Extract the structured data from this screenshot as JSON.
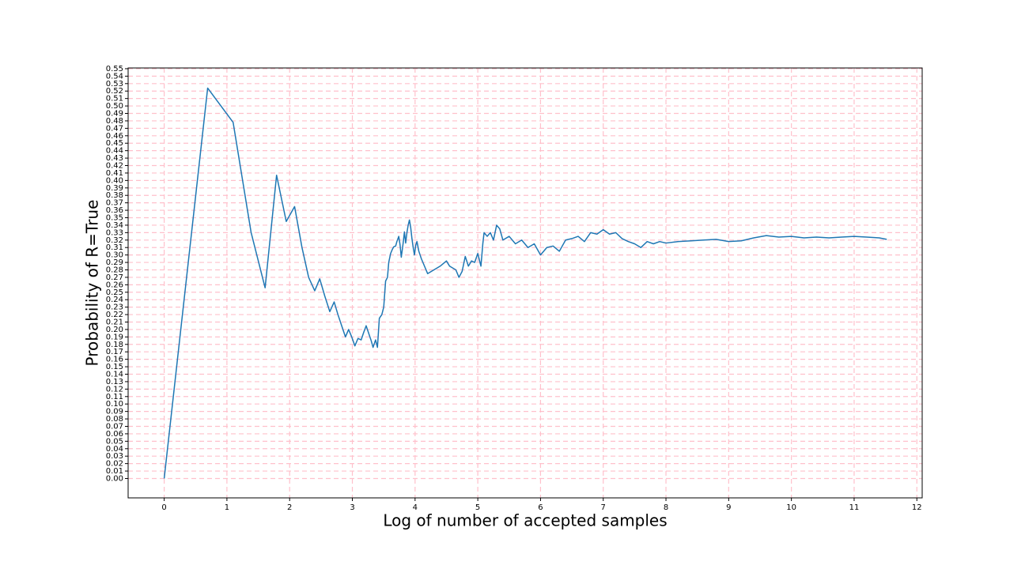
{
  "chart_data": {
    "type": "line",
    "xlabel": "Log of number of accepted samples",
    "ylabel": "Probability of R=True",
    "color": "#1f77b4",
    "grid": true,
    "grid_color": "#ffc0cb",
    "xlim": [
      -0.575,
      12.085
    ],
    "ylim": [
      -0.026,
      0.551
    ],
    "xticks": [
      0,
      1,
      2,
      3,
      4,
      5,
      6,
      7,
      8,
      9,
      10,
      11,
      12
    ],
    "yticks": [
      {
        "value": 0,
        "label": "0.00"
      },
      {
        "value": 0.01,
        "label": "0.01"
      },
      {
        "value": 0.02,
        "label": "0.02"
      },
      {
        "value": 0.03,
        "label": "0.03"
      },
      {
        "value": 0.04,
        "label": "0.04"
      },
      {
        "value": 0.05,
        "label": "0.05"
      },
      {
        "value": 0.06,
        "label": "0.06"
      },
      {
        "value": 0.07,
        "label": "0.07"
      },
      {
        "value": 0.08,
        "label": "0.08"
      },
      {
        "value": 0.09,
        "label": "0.09"
      },
      {
        "value": 0.1,
        "label": "0.10"
      },
      {
        "value": 0.11,
        "label": "0.11"
      },
      {
        "value": 0.12,
        "label": "0.12"
      },
      {
        "value": 0.13,
        "label": "0.13"
      },
      {
        "value": 0.14,
        "label": "0.14"
      },
      {
        "value": 0.15,
        "label": "0.15"
      },
      {
        "value": 0.16,
        "label": "0.16"
      },
      {
        "value": 0.17,
        "label": "0.17"
      },
      {
        "value": 0.18,
        "label": "0.18"
      },
      {
        "value": 0.19,
        "label": "0.19"
      },
      {
        "value": 0.2,
        "label": "0.20"
      },
      {
        "value": 0.21,
        "label": "0.21"
      },
      {
        "value": 0.22,
        "label": "0.22"
      },
      {
        "value": 0.23,
        "label": "0.23"
      },
      {
        "value": 0.24,
        "label": "0.24"
      },
      {
        "value": 0.25,
        "label": "0.25"
      },
      {
        "value": 0.26,
        "label": "0.26"
      },
      {
        "value": 0.27,
        "label": "0.27"
      },
      {
        "value": 0.28,
        "label": "0.28"
      },
      {
        "value": 0.29,
        "label": "0.29"
      },
      {
        "value": 0.3,
        "label": "0.30"
      },
      {
        "value": 0.31,
        "label": "0.31"
      },
      {
        "value": 0.32,
        "label": "0.32"
      },
      {
        "value": 0.33,
        "label": "0.33"
      },
      {
        "value": 0.34,
        "label": "0.34"
      },
      {
        "value": 0.35,
        "label": "0.35"
      },
      {
        "value": 0.36,
        "label": "0.36"
      },
      {
        "value": 0.37,
        "label": "0.37"
      },
      {
        "value": 0.38,
        "label": "0.38"
      },
      {
        "value": 0.39,
        "label": "0.39"
      },
      {
        "value": 0.4,
        "label": "0.40"
      },
      {
        "value": 0.41,
        "label": "0.41"
      },
      {
        "value": 0.42,
        "label": "0.42"
      },
      {
        "value": 0.43,
        "label": "0.43"
      },
      {
        "value": 0.44,
        "label": "0.44"
      },
      {
        "value": 0.45,
        "label": "0.45"
      },
      {
        "value": 0.46,
        "label": "0.46"
      },
      {
        "value": 0.47,
        "label": "0.47"
      },
      {
        "value": 0.48,
        "label": "0.48"
      },
      {
        "value": 0.49,
        "label": "0.49"
      },
      {
        "value": 0.5,
        "label": "0.50"
      },
      {
        "value": 0.51,
        "label": "0.51"
      },
      {
        "value": 0.52,
        "label": "0.52"
      },
      {
        "value": 0.53,
        "label": "0.53"
      },
      {
        "value": 0.54,
        "label": "0.54"
      },
      {
        "value": 0.55,
        "label": "0.55"
      }
    ],
    "x": [
      0,
      0.693,
      1.099,
      1.386,
      1.609,
      1.792,
      1.946,
      2.079,
      2.197,
      2.303,
      2.4,
      2.48,
      2.56,
      2.64,
      2.71,
      2.77,
      2.83,
      2.89,
      2.94,
      2.99,
      3.04,
      3.09,
      3.14,
      3.18,
      3.22,
      3.26,
      3.3,
      3.33,
      3.37,
      3.4,
      3.43,
      3.47,
      3.5,
      3.53,
      3.56,
      3.58,
      3.61,
      3.64,
      3.66,
      3.69,
      3.71,
      3.74,
      3.76,
      3.78,
      3.81,
      3.83,
      3.85,
      3.87,
      3.89,
      3.91,
      3.93,
      3.95,
      3.97,
      3.99,
      4.01,
      4.03,
      4.06,
      4.1,
      4.2,
      4.3,
      4.4,
      4.5,
      4.55,
      4.65,
      4.7,
      4.75,
      4.8,
      4.85,
      4.9,
      4.95,
      5.0,
      5.05,
      5.08,
      5.1,
      5.15,
      5.2,
      5.25,
      5.3,
      5.35,
      5.4,
      5.5,
      5.6,
      5.7,
      5.8,
      5.9,
      6.0,
      6.1,
      6.2,
      6.3,
      6.4,
      6.5,
      6.6,
      6.7,
      6.8,
      6.9,
      7.0,
      7.1,
      7.2,
      7.3,
      7.4,
      7.5,
      7.6,
      7.7,
      7.8,
      7.9,
      8.0,
      8.2,
      8.4,
      8.6,
      8.8,
      9.0,
      9.2,
      9.4,
      9.6,
      9.8,
      10.0,
      10.2,
      10.4,
      10.6,
      10.8,
      11.0,
      11.2,
      11.4,
      11.52
    ],
    "values": [
      0,
      0.524,
      0.478,
      0.33,
      0.256,
      0.407,
      0.345,
      0.365,
      0.31,
      0.27,
      0.252,
      0.268,
      0.245,
      0.224,
      0.237,
      0.22,
      0.205,
      0.19,
      0.2,
      0.19,
      0.178,
      0.188,
      0.186,
      0.196,
      0.205,
      0.195,
      0.185,
      0.176,
      0.186,
      0.176,
      0.215,
      0.22,
      0.23,
      0.265,
      0.27,
      0.29,
      0.302,
      0.308,
      0.311,
      0.312,
      0.318,
      0.325,
      0.314,
      0.297,
      0.316,
      0.331,
      0.316,
      0.33,
      0.34,
      0.347,
      0.337,
      0.322,
      0.31,
      0.3,
      0.313,
      0.318,
      0.305,
      0.295,
      0.275,
      0.28,
      0.285,
      0.292,
      0.285,
      0.28,
      0.27,
      0.278,
      0.298,
      0.285,
      0.292,
      0.29,
      0.302,
      0.285,
      0.315,
      0.33,
      0.325,
      0.33,
      0.32,
      0.34,
      0.335,
      0.32,
      0.325,
      0.315,
      0.32,
      0.31,
      0.315,
      0.3,
      0.31,
      0.312,
      0.305,
      0.32,
      0.322,
      0.325,
      0.318,
      0.33,
      0.328,
      0.334,
      0.328,
      0.33,
      0.322,
      0.318,
      0.315,
      0.31,
      0.318,
      0.315,
      0.318,
      0.316,
      0.318,
      0.319,
      0.32,
      0.321,
      0.318,
      0.319,
      0.323,
      0.326,
      0.324,
      0.325,
      0.323,
      0.324,
      0.323,
      0.324,
      0.325,
      0.324,
      0.323,
      0.321
    ]
  }
}
